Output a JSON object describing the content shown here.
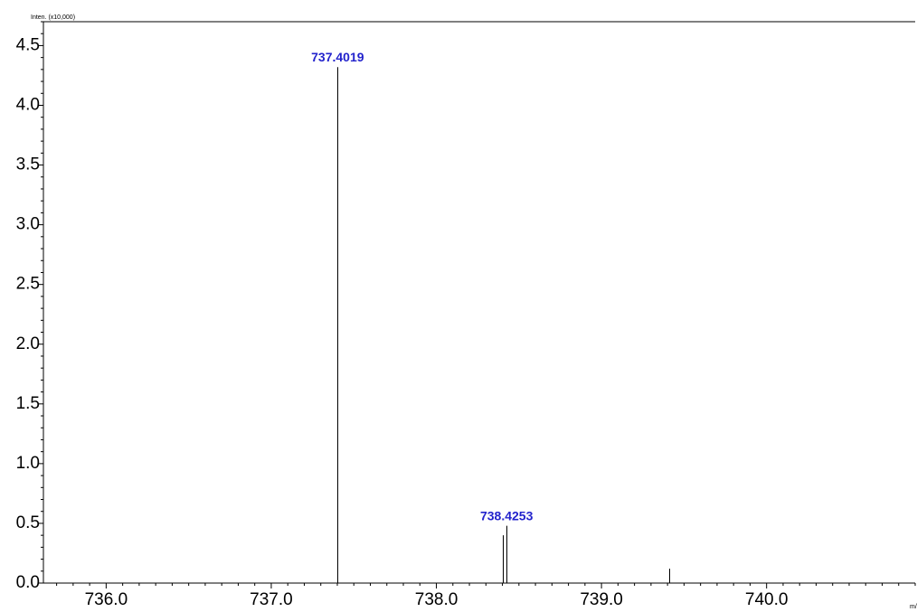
{
  "chart_data": {
    "type": "bar",
    "ylabel": "Inten. (x10,000)",
    "xlabel": "m/",
    "xlim": [
      735.62,
      740.9
    ],
    "ylim": [
      0,
      4.7
    ],
    "x_major_ticks": [
      736.0,
      737.0,
      738.0,
      739.0,
      740.0
    ],
    "x_tick_labels": [
      "736.0",
      "737.0",
      "738.0",
      "739.0",
      "740.0"
    ],
    "y_major_ticks": [
      0.0,
      0.5,
      1.0,
      1.5,
      2.0,
      2.5,
      3.0,
      3.5,
      4.0,
      4.5
    ],
    "y_tick_labels": [
      "0.0",
      "0.5",
      "1.0",
      "1.5",
      "2.0",
      "2.5",
      "3.0",
      "3.5",
      "4.0",
      "4.5"
    ],
    "peaks": [
      {
        "mz": 737.4019,
        "intensity": 4.32
      },
      {
        "mz": 738.405,
        "intensity": 0.4
      },
      {
        "mz": 738.4253,
        "intensity": 0.48
      },
      {
        "mz": 739.41,
        "intensity": 0.12
      }
    ],
    "annotations": [
      {
        "text": "737.4019",
        "mz": 737.4019,
        "intensity": 4.32
      },
      {
        "text": "738.4253",
        "mz": 738.4253,
        "intensity": 0.48
      }
    ],
    "colors": {
      "annotation": "#2323cc",
      "peak": "#000000",
      "axis": "#000000"
    },
    "grid": false
  }
}
